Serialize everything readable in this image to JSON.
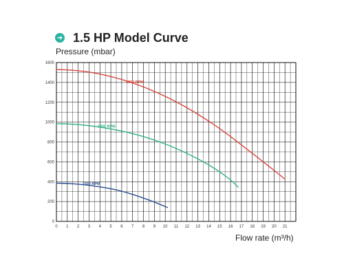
{
  "title": "1.5 HP Model Curve",
  "chart_data": {
    "type": "line",
    "title": "1.5 HP Model Curve",
    "ylabel": "Pressure (mbar)",
    "xlabel": "Flow rate (m³/h)",
    "xlim": [
      0,
      22
    ],
    "ylim": [
      0,
      1600
    ],
    "xticks": [
      0,
      1,
      2,
      3,
      4,
      5,
      6,
      7,
      8,
      9,
      10,
      11,
      12,
      13,
      14,
      15,
      16,
      17,
      18,
      19,
      20,
      21
    ],
    "yticks": [
      0,
      200,
      400,
      600,
      800,
      1000,
      1200,
      1400,
      1600
    ],
    "grid": true,
    "series": [
      {
        "name": "3000 RPM",
        "color": "#d9433a",
        "x": [
          0,
          1,
          2,
          3,
          4,
          5,
          6,
          7,
          8,
          9,
          10,
          11,
          12,
          13,
          14,
          15,
          16,
          17,
          18,
          19,
          20,
          21
        ],
        "y": [
          1530,
          1527,
          1518,
          1505,
          1485,
          1460,
          1430,
          1395,
          1355,
          1310,
          1260,
          1205,
          1145,
          1080,
          1010,
          935,
          855,
          770,
          685,
          600,
          515,
          425
        ]
      },
      {
        "name": "2400 RPM",
        "color": "#2fb287",
        "x": [
          0,
          1,
          2,
          3,
          4,
          5,
          6,
          7,
          8,
          9,
          10,
          11,
          12,
          13,
          14,
          15,
          16,
          16.7
        ],
        "y": [
          985,
          982,
          975,
          965,
          950,
          932,
          910,
          885,
          855,
          820,
          780,
          735,
          685,
          630,
          570,
          500,
          420,
          345
        ]
      },
      {
        "name": "1500 RPM",
        "color": "#2c4e8e",
        "x": [
          0,
          1,
          2,
          3,
          4,
          5,
          6,
          7,
          8,
          9,
          10.2
        ],
        "y": [
          385,
          382,
          375,
          363,
          348,
          330,
          305,
          272,
          235,
          195,
          140
        ]
      }
    ]
  }
}
